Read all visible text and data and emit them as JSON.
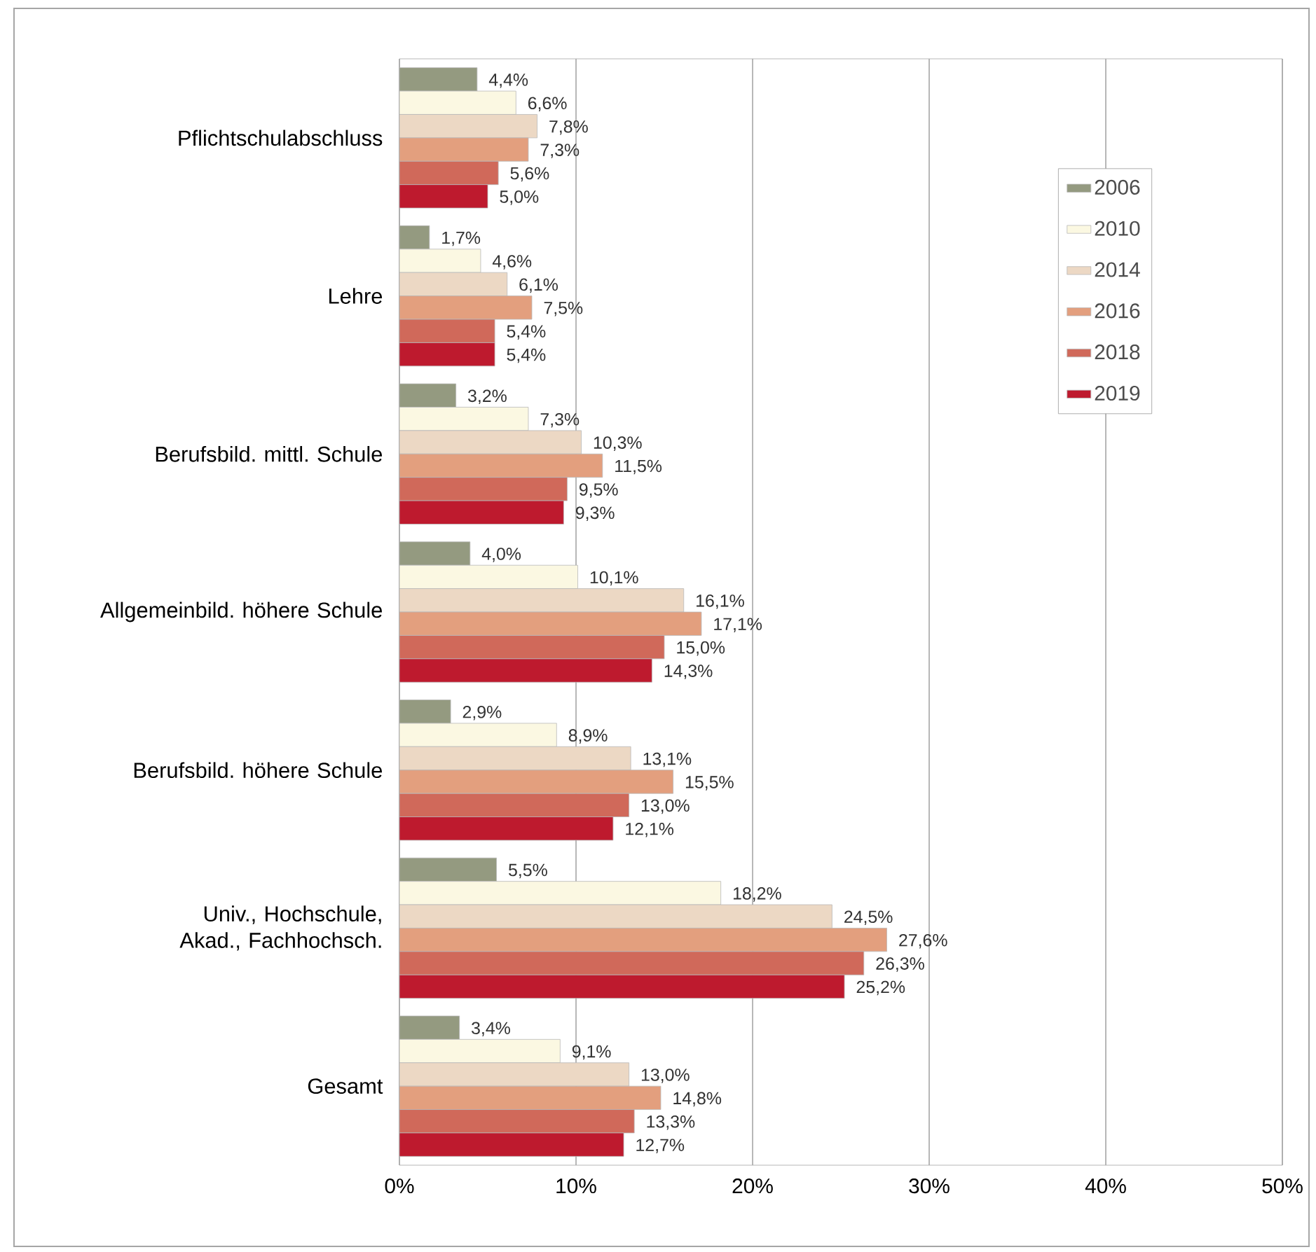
{
  "chart_data": {
    "type": "bar",
    "orientation": "horizontal",
    "categories": [
      "Pflichtschulabschluss",
      "Lehre",
      "Berufsbild. mittl. Schule",
      "Allgemeinbild. höhere Schule",
      "Berufsbild. höhere Schule",
      "Univ., Hochschule, Akad., Fachhochsch.",
      "Gesamt"
    ],
    "series": [
      {
        "name": "2006",
        "color": "#949a80",
        "values": [
          4.4,
          1.7,
          3.2,
          4.0,
          2.9,
          5.5,
          3.4
        ],
        "value_labels": [
          "4,4%",
          "1,7%",
          "3,2%",
          "4,0%",
          "2,9%",
          "5,5%",
          "3,4%"
        ]
      },
      {
        "name": "2010",
        "color": "#fbf8e2",
        "values": [
          6.6,
          4.6,
          7.3,
          10.1,
          8.9,
          18.2,
          9.1
        ],
        "value_labels": [
          "6,6%",
          "4,6%",
          "7,3%",
          "10,1%",
          "8,9%",
          "18,2%",
          "9,1%"
        ]
      },
      {
        "name": "2014",
        "color": "#ecd8c4",
        "values": [
          7.8,
          6.1,
          10.3,
          16.1,
          13.1,
          24.5,
          13.0
        ],
        "value_labels": [
          "7,8%",
          "6,1%",
          "10,3%",
          "16,1%",
          "13,1%",
          "24,5%",
          "13,0%"
        ]
      },
      {
        "name": "2016",
        "color": "#e39f7e",
        "values": [
          7.3,
          7.5,
          11.5,
          17.1,
          15.5,
          27.6,
          14.8
        ],
        "value_labels": [
          "7,3%",
          "7,5%",
          "11,5%",
          "17,1%",
          "15,5%",
          "27,6%",
          "14,8%"
        ]
      },
      {
        "name": "2018",
        "color": "#d0695a",
        "values": [
          5.6,
          5.4,
          9.5,
          15.0,
          13.0,
          26.3,
          13.3
        ],
        "value_labels": [
          "5,6%",
          "5,4%",
          "9,5%",
          "15,0%",
          "13,0%",
          "26,3%",
          "13,3%"
        ]
      },
      {
        "name": "2019",
        "color": "#be1a2e",
        "values": [
          5.0,
          5.4,
          9.3,
          14.3,
          12.1,
          25.2,
          12.7
        ],
        "value_labels": [
          "5,0%",
          "5,4%",
          "9,3%",
          "14,3%",
          "12,1%",
          "25,2%",
          "12,7%"
        ]
      }
    ],
    "xlim": [
      0,
      50
    ],
    "xticks": [
      {
        "value": 0,
        "label": "0%"
      },
      {
        "value": 10,
        "label": "10%"
      },
      {
        "value": 20,
        "label": "20%"
      },
      {
        "value": 30,
        "label": "30%"
      },
      {
        "value": 40,
        "label": "40%"
      },
      {
        "value": 50,
        "label": "50%"
      }
    ],
    "grid": "x",
    "legend": "top right"
  }
}
